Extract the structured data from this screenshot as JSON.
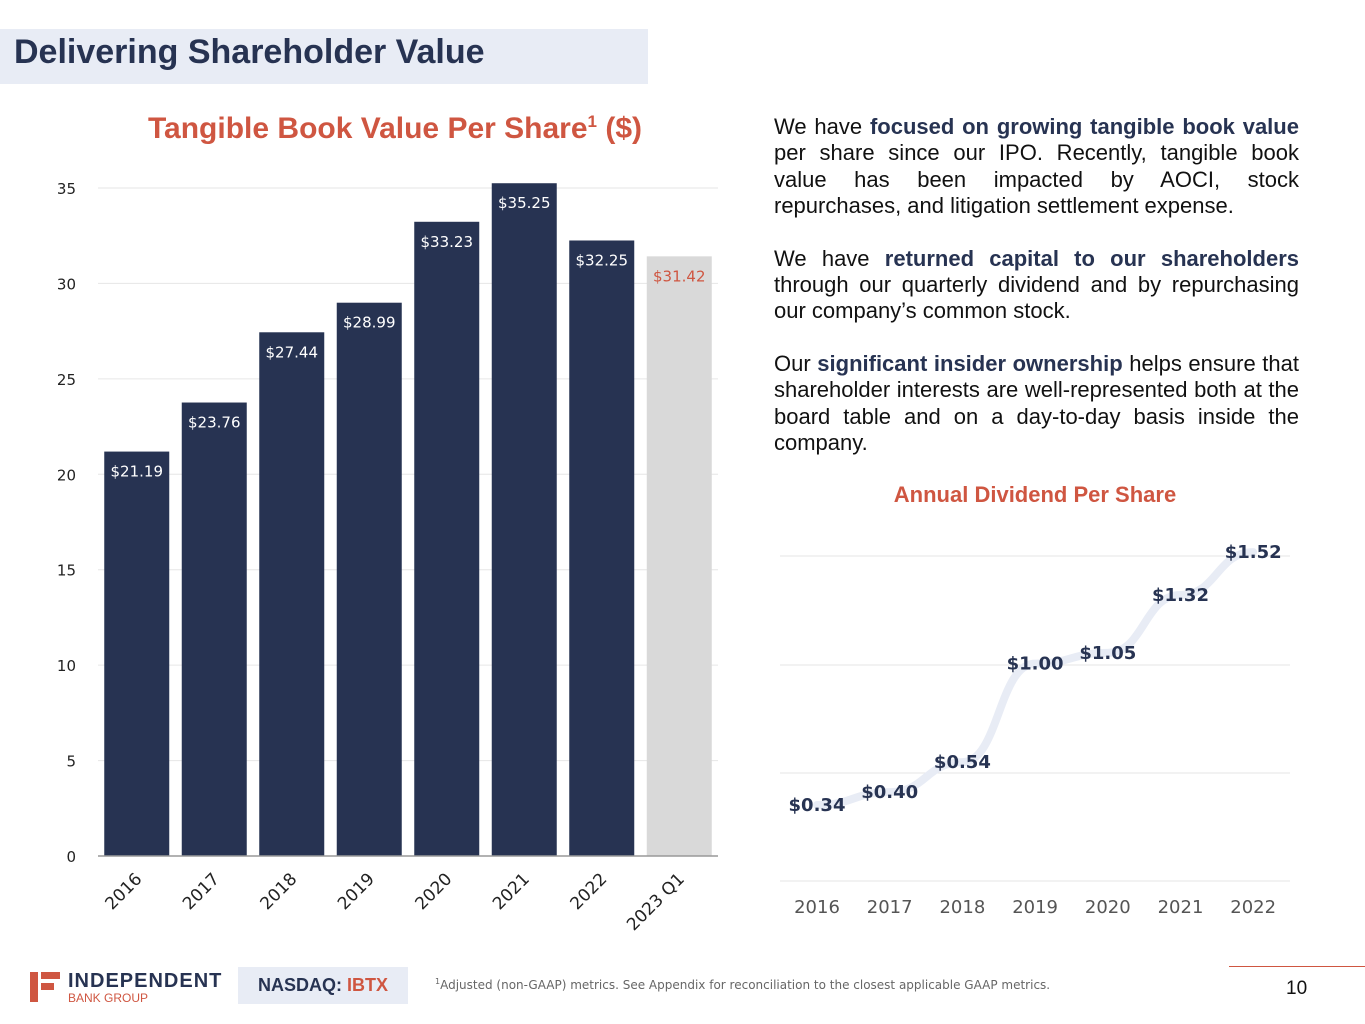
{
  "header": {
    "title": "Delivering Shareholder Value"
  },
  "bar_chart_title": {
    "main": "Tangible Book Value Per Share",
    "sup": "1",
    "unit": "($)"
  },
  "colors": {
    "navy": "#273352",
    "accent": "#cf5641",
    "projected_bar": "#d9d9d9",
    "line": "#e8ecf5"
  },
  "chart_data": [
    {
      "type": "bar",
      "title": "Tangible Book Value Per Share1 ($)",
      "categories": [
        "2016",
        "2017",
        "2018",
        "2019",
        "2020",
        "2021",
        "2022",
        "2023 Q1"
      ],
      "values": [
        21.19,
        23.76,
        27.44,
        28.99,
        33.23,
        35.25,
        32.25,
        31.42
      ],
      "labels": [
        "$21.19",
        "$23.76",
        "$27.44",
        "$28.99",
        "$33.23",
        "$35.25",
        "$32.25",
        "$31.42"
      ],
      "highlight_last": true,
      "ylim": [
        0,
        35
      ],
      "yticks": [
        0,
        5,
        10,
        15,
        20,
        25,
        30,
        35
      ],
      "grid": true,
      "xlabel": "",
      "ylabel": ""
    },
    {
      "type": "line",
      "title": "Annual Dividend Per Share",
      "categories": [
        "2016",
        "2017",
        "2018",
        "2019",
        "2020",
        "2021",
        "2022"
      ],
      "values": [
        0.34,
        0.4,
        0.54,
        1.0,
        1.05,
        1.32,
        1.52
      ],
      "labels": [
        "$0.34",
        "$0.40",
        "$0.54",
        "$1.00",
        "$1.05",
        "$1.32",
        "$1.52"
      ],
      "grid": true,
      "xlabel": "",
      "ylabel": ""
    }
  ],
  "paragraphs": [
    {
      "pre": "We have ",
      "bold": "focused on growing tangible book value",
      "post": " per share since our IPO. Recently, tangible book value has been impacted by AOCI, stock repurchases, and litigation settlement expense."
    },
    {
      "pre": "We have ",
      "bold": "returned capital to our shareholders",
      "post": " through our quarterly dividend and by repurchasing our company’s common stock."
    },
    {
      "pre": "Our ",
      "bold": "significant insider ownership",
      "post": " helps ensure that shareholder interests are well-represented both at the board table and on a day-to-day basis inside the company."
    }
  ],
  "dividend_title": "Annual Dividend Per Share",
  "footer": {
    "logo_name": "INDEPENDENT",
    "logo_sub": "BANK GROUP",
    "exchange": "NASDAQ:",
    "ticker": "IBTX",
    "footnote_sup": "1",
    "footnote": "Adjusted (non-GAAP) metrics. See Appendix for reconciliation to the closest applicable GAAP metrics.",
    "page_number": "10"
  }
}
